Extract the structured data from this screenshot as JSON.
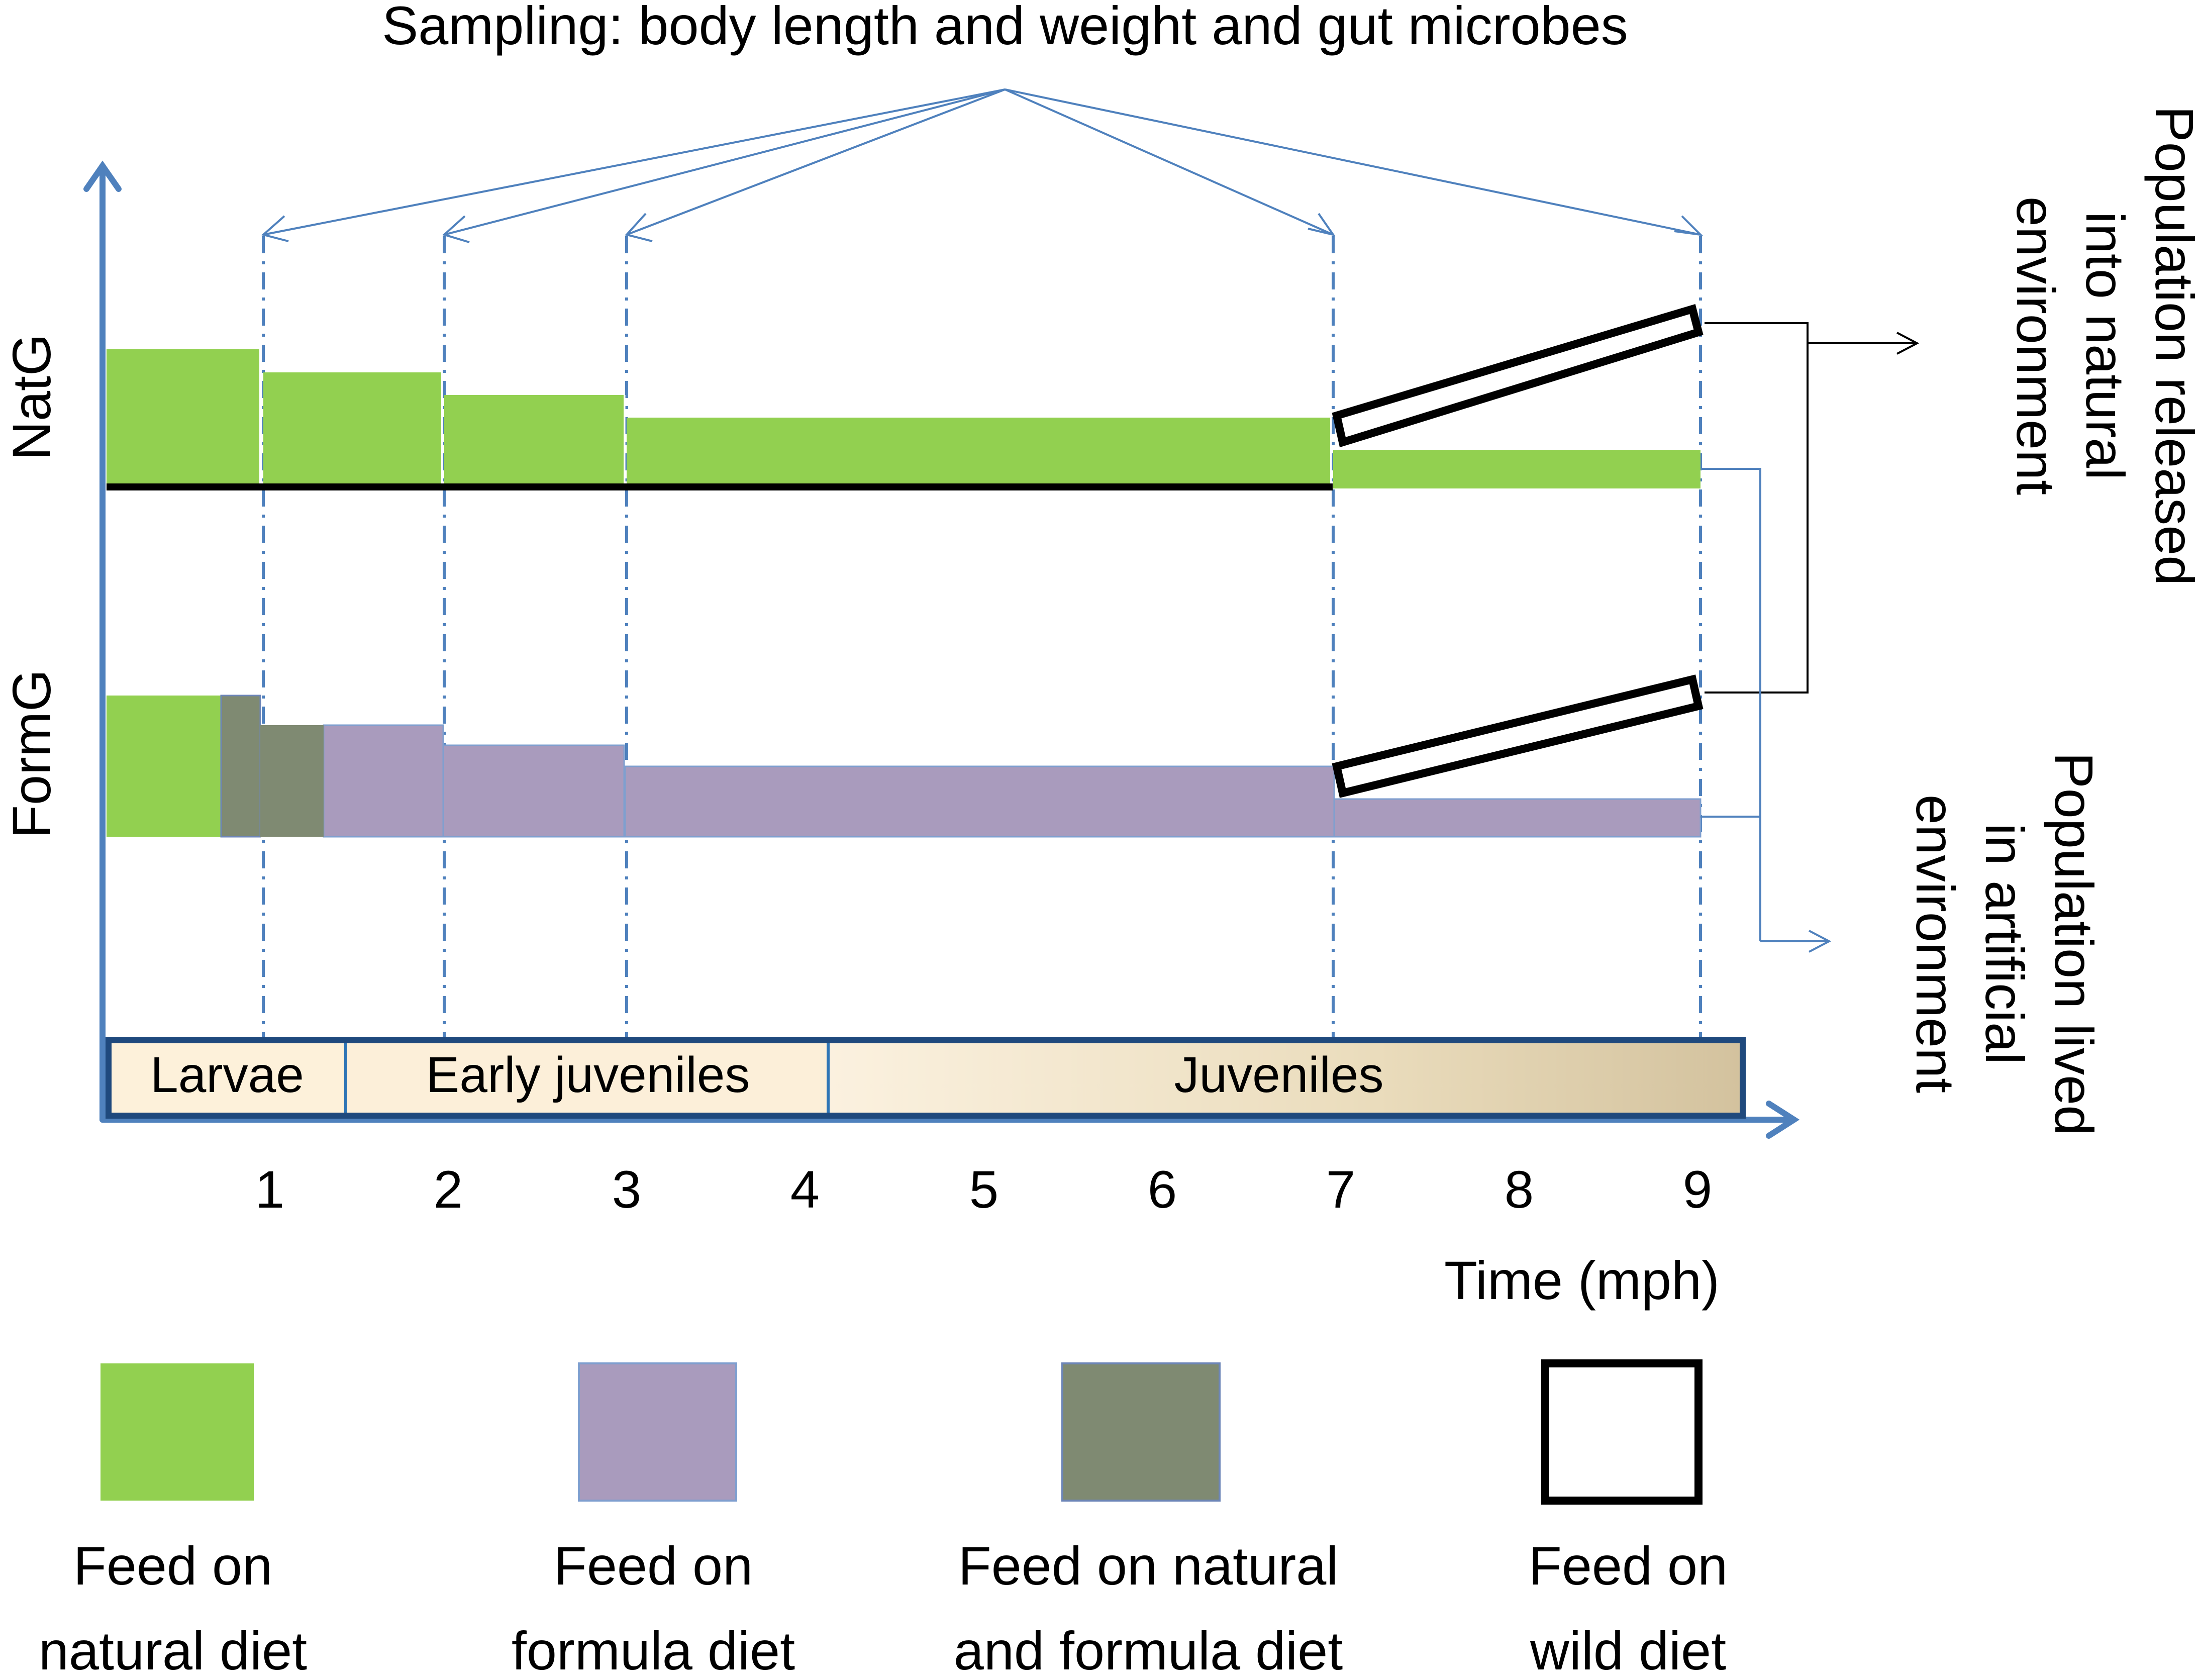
{
  "title": "Sampling: body length and weight and gut microbes",
  "groups": {
    "natural": "NatG",
    "formula": "FormG"
  },
  "x_axis": {
    "label": "Time (mph)",
    "ticks": [
      "1",
      "2",
      "3",
      "4",
      "5",
      "6",
      "7",
      "8",
      "9"
    ]
  },
  "stages": {
    "larvae": "Larvae",
    "early": "Early juveniles",
    "juveniles": "Juveniles"
  },
  "outcomes": {
    "released_1": "Population released",
    "released_2": "into natural",
    "released_3": "environment",
    "lived_1": "Population lived",
    "lived_2": "in artificial",
    "lived_3": "environment"
  },
  "legend": {
    "natural_1": "Feed on",
    "natural_2": "natural diet",
    "formula_1": "Feed on",
    "formula_2": "formula diet",
    "mixed_1": "Feed on natural",
    "mixed_2": "and formula diet",
    "wild_1": "Feed on",
    "wild_2": "wild diet"
  },
  "colors": {
    "natural": "#92d050",
    "formula": "#a99bbd",
    "mixed": "#7f8a72",
    "axis": "#4f81bd",
    "stage_border": "#1f497d",
    "stage_light": "#fdf1da",
    "stage_dark": "#d6c6a3"
  },
  "sampling_months": [
    1,
    2,
    3,
    7,
    9
  ]
}
